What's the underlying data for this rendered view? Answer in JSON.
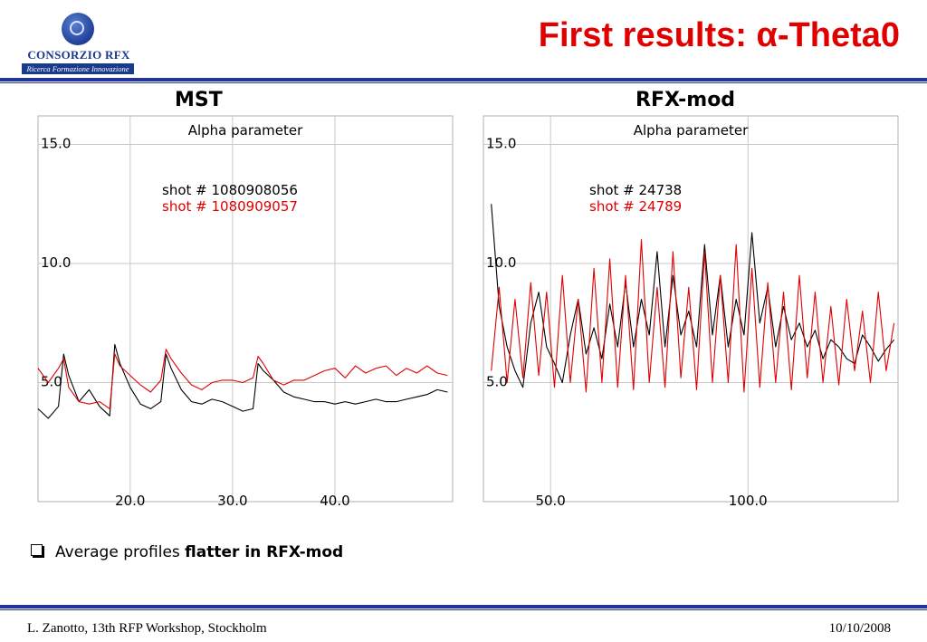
{
  "logo": {
    "name": "CONSORZIO RFX",
    "tagline": "Ricerca Formazione Innovazione"
  },
  "slide_title": {
    "text": "First results: ",
    "symbol": "α",
    "suffix": "-Theta0"
  },
  "bullet": {
    "prefix": "Average profiles ",
    "emphasis": "flatter in RFX-mod"
  },
  "footer": {
    "left": "L. Zanotto, 13th RFP Workshop, Stockholm",
    "right": "10/10/2008"
  },
  "colors": {
    "series_black": "#000000",
    "series_red": "#e00000",
    "grid": "#c8c8c8",
    "rule": "#22349a"
  },
  "chart_data": [
    {
      "type": "line",
      "panel_label": "MST",
      "title": "Alpha parameter",
      "xlim": [
        11,
        51.5
      ],
      "ylim": [
        0,
        16.2
      ],
      "x_ticks": [
        20,
        30,
        40
      ],
      "x_tick_labels": [
        "20.0",
        "30.0",
        "40.0"
      ],
      "y_ticks": [
        5,
        10,
        15
      ],
      "y_tick_labels": [
        "5.0",
        "10.0",
        "15.0"
      ],
      "grid": true,
      "legend_placement": "top-center",
      "series": [
        {
          "name": "shot # 1080908056",
          "color": "#000000",
          "x": [
            11,
            12,
            13,
            13.5,
            14,
            15,
            16,
            17,
            18,
            18.5,
            19,
            20,
            21,
            22,
            23,
            23.5,
            24,
            25,
            26,
            27,
            28,
            29,
            30,
            31,
            32,
            32.5,
            33,
            34,
            35,
            36,
            37,
            38,
            39,
            40,
            41,
            42,
            43,
            44,
            45,
            46,
            47,
            48,
            49,
            50,
            51
          ],
          "y": [
            3.9,
            3.5,
            4.0,
            6.2,
            5.3,
            4.2,
            4.7,
            4.0,
            3.6,
            6.6,
            5.8,
            4.8,
            4.1,
            3.9,
            4.2,
            6.2,
            5.6,
            4.7,
            4.2,
            4.1,
            4.3,
            4.2,
            4.0,
            3.8,
            3.9,
            5.8,
            5.5,
            5.1,
            4.6,
            4.4,
            4.3,
            4.2,
            4.2,
            4.1,
            4.2,
            4.1,
            4.2,
            4.3,
            4.2,
            4.2,
            4.3,
            4.4,
            4.5,
            4.7,
            4.6
          ]
        },
        {
          "name": "shot # 1080909057",
          "color": "#e00000",
          "x": [
            11,
            12,
            13,
            13.5,
            14,
            15,
            16,
            17,
            18,
            18.5,
            19,
            20,
            21,
            22,
            23,
            23.5,
            24,
            25,
            26,
            27,
            28,
            29,
            30,
            31,
            32,
            32.5,
            33,
            34,
            35,
            36,
            37,
            38,
            39,
            40,
            41,
            42,
            43,
            44,
            45,
            46,
            47,
            48,
            49,
            50,
            51
          ],
          "y": [
            5.6,
            5.0,
            5.6,
            6.0,
            4.8,
            4.2,
            4.1,
            4.2,
            3.9,
            6.2,
            5.7,
            5.3,
            4.9,
            4.6,
            5.1,
            6.4,
            6.0,
            5.4,
            4.9,
            4.7,
            5.0,
            5.1,
            5.1,
            5.0,
            5.2,
            6.1,
            5.8,
            5.1,
            4.9,
            5.1,
            5.1,
            5.3,
            5.5,
            5.6,
            5.2,
            5.7,
            5.4,
            5.6,
            5.7,
            5.3,
            5.6,
            5.4,
            5.7,
            5.4,
            5.3
          ]
        }
      ]
    },
    {
      "type": "line",
      "panel_label": "RFX-mod",
      "title": "Alpha parameter",
      "xlim": [
        33,
        138
      ],
      "ylim": [
        0,
        16.2
      ],
      "x_ticks": [
        50,
        100
      ],
      "x_tick_labels": [
        "50.0",
        "100.0"
      ],
      "y_ticks": [
        5,
        10,
        15
      ],
      "y_tick_labels": [
        "5.0",
        "10.0",
        "15.0"
      ],
      "grid": true,
      "legend_placement": "top-center",
      "series": [
        {
          "name": "shot # 24738",
          "color": "#000000",
          "x": [
            35,
            37,
            39,
            41,
            43,
            45,
            47,
            49,
            51,
            53,
            55,
            57,
            59,
            61,
            63,
            65,
            67,
            69,
            71,
            73,
            75,
            77,
            79,
            81,
            83,
            85,
            87,
            89,
            91,
            93,
            95,
            97,
            99,
            101,
            103,
            105,
            107,
            109,
            111,
            113,
            115,
            117,
            119,
            121,
            123,
            125,
            127,
            129,
            131,
            133,
            135,
            137
          ],
          "y": [
            12.5,
            8.2,
            6.5,
            5.5,
            4.8,
            7.5,
            8.8,
            6.5,
            5.8,
            5.0,
            7.0,
            8.5,
            6.2,
            7.3,
            6.0,
            8.3,
            6.5,
            9.2,
            6.5,
            8.5,
            7.0,
            10.5,
            6.5,
            9.5,
            7.0,
            8.0,
            6.5,
            10.8,
            7.0,
            9.5,
            6.5,
            8.5,
            7.0,
            11.3,
            7.5,
            9.0,
            6.5,
            8.2,
            6.8,
            7.5,
            6.5,
            7.2,
            6.0,
            6.8,
            6.5,
            6.0,
            5.8,
            7.0,
            6.5,
            5.9,
            6.4,
            6.8
          ]
        },
        {
          "name": "shot # 24789",
          "color": "#e00000",
          "x": [
            35,
            37,
            39,
            41,
            43,
            45,
            47,
            49,
            51,
            53,
            55,
            57,
            59,
            61,
            63,
            65,
            67,
            69,
            71,
            73,
            75,
            77,
            79,
            81,
            83,
            85,
            87,
            89,
            91,
            93,
            95,
            97,
            99,
            101,
            103,
            105,
            107,
            109,
            111,
            113,
            115,
            117,
            119,
            121,
            123,
            125,
            127,
            129,
            131,
            133,
            135,
            137
          ],
          "y": [
            5.5,
            9.0,
            5.0,
            8.5,
            5.2,
            9.2,
            5.3,
            8.8,
            4.8,
            9.5,
            5.0,
            8.5,
            4.6,
            9.8,
            5.0,
            10.2,
            4.8,
            9.5,
            4.7,
            11.0,
            5.0,
            9.0,
            4.8,
            10.5,
            5.2,
            9.0,
            4.7,
            10.5,
            5.0,
            9.5,
            5.0,
            10.8,
            4.6,
            9.8,
            4.8,
            9.2,
            5.0,
            8.8,
            4.7,
            9.5,
            5.2,
            8.8,
            5.0,
            8.2,
            4.9,
            8.5,
            5.5,
            8.0,
            5.0,
            8.8,
            5.5,
            7.5
          ]
        }
      ]
    }
  ]
}
